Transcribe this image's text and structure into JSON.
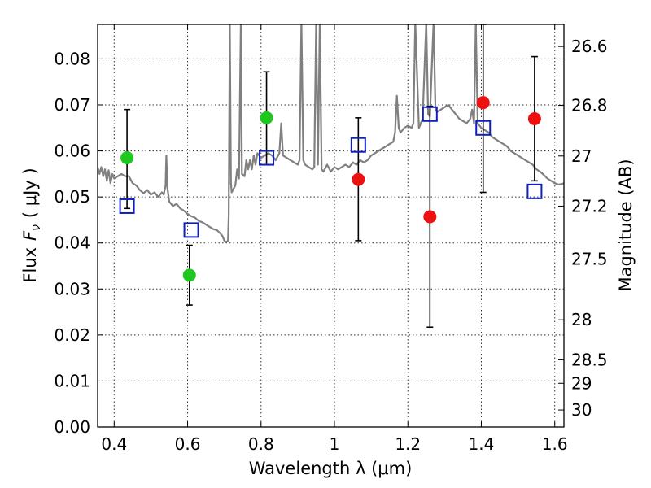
{
  "chart_data": {
    "type": "scatter",
    "xlabel": "Wavelength  λ (μm)",
    "ylabel": "Flux  F_ν ( μJy )",
    "ylabel_parts": {
      "prefix": "Flux",
      "var": "F",
      "sub": "ν",
      "unit": "( μJy )"
    },
    "y2label": "Magnitude (AB)",
    "xlim": [
      0.355,
      1.625
    ],
    "ylim": [
      0.0,
      0.0875
    ],
    "x_ticks": [
      0.4,
      0.6,
      0.8,
      1.0,
      1.2,
      1.4,
      1.6
    ],
    "x_tick_labels": [
      "0.4",
      "0.6",
      "0.8",
      "1",
      "1.2",
      "1.4",
      "1.6"
    ],
    "y_ticks": [
      0.0,
      0.01,
      0.02,
      0.03,
      0.04,
      0.05,
      0.06,
      0.07,
      0.08
    ],
    "y_tick_labels": [
      "0.00",
      "0.01",
      "0.02",
      "0.03",
      "0.04",
      "0.05",
      "0.06",
      "0.07",
      "0.08"
    ],
    "y2_ticks": [
      {
        "label": "26.6",
        "flux": 0.0827
      },
      {
        "label": "26.8",
        "flux": 0.0699
      },
      {
        "label": "27",
        "flux": 0.0589
      },
      {
        "label": "27.2",
        "flux": 0.048
      },
      {
        "label": "27.5",
        "flux": 0.0365
      },
      {
        "label": "28",
        "flux": 0.0233
      },
      {
        "label": "28.5",
        "flux": 0.0146
      },
      {
        "label": "29",
        "flux": 0.0095
      },
      {
        "label": "30",
        "flux": 0.0037
      }
    ],
    "grid": true,
    "colors": {
      "green": "#1ec81e",
      "red": "#ee1111",
      "blue": "#1020c0",
      "model": "#808080",
      "error": "#000000"
    },
    "series": [
      {
        "kind": "observed-green",
        "marker": "filled-circle",
        "points": [
          {
            "x": 0.435,
            "y": 0.0585,
            "ylo": 0.0475,
            "yhi": 0.069
          },
          {
            "x": 0.605,
            "y": 0.033,
            "ylo": 0.0265,
            "yhi": 0.0395
          },
          {
            "x": 0.815,
            "y": 0.0672,
            "ylo": 0.057,
            "yhi": 0.0772
          }
        ]
      },
      {
        "kind": "observed-red",
        "marker": "filled-circle",
        "points": [
          {
            "x": 1.065,
            "y": 0.0538,
            "ylo": 0.0405,
            "yhi": 0.0672
          },
          {
            "x": 1.26,
            "y": 0.0457,
            "ylo": 0.0217,
            "yhi": 0.0697
          },
          {
            "x": 1.405,
            "y": 0.0705,
            "ylo": 0.051,
            "yhi": 0.0875
          },
          {
            "x": 1.545,
            "y": 0.067,
            "ylo": 0.0535,
            "yhi": 0.0805
          }
        ]
      },
      {
        "kind": "model-photometry",
        "marker": "open-square",
        "points": [
          {
            "x": 0.435,
            "y": 0.048
          },
          {
            "x": 0.61,
            "y": 0.0428
          },
          {
            "x": 0.815,
            "y": 0.0585
          },
          {
            "x": 1.065,
            "y": 0.0613
          },
          {
            "x": 1.26,
            "y": 0.068
          },
          {
            "x": 1.405,
            "y": 0.065
          },
          {
            "x": 1.545,
            "y": 0.0512
          }
        ]
      }
    ],
    "model_spectrum": [
      [
        0.355,
        0.0565
      ],
      [
        0.36,
        0.055
      ],
      [
        0.365,
        0.0565
      ],
      [
        0.37,
        0.0545
      ],
      [
        0.375,
        0.056
      ],
      [
        0.38,
        0.0535
      ],
      [
        0.385,
        0.0558
      ],
      [
        0.39,
        0.053
      ],
      [
        0.395,
        0.055
      ],
      [
        0.4,
        0.054
      ],
      [
        0.41,
        0.0545
      ],
      [
        0.42,
        0.055
      ],
      [
        0.43,
        0.0545
      ],
      [
        0.44,
        0.0545
      ],
      [
        0.45,
        0.053
      ],
      [
        0.46,
        0.0525
      ],
      [
        0.47,
        0.0515
      ],
      [
        0.48,
        0.0508
      ],
      [
        0.49,
        0.0515
      ],
      [
        0.5,
        0.0505
      ],
      [
        0.51,
        0.051
      ],
      [
        0.52,
        0.05
      ],
      [
        0.53,
        0.051
      ],
      [
        0.535,
        0.0505
      ],
      [
        0.54,
        0.0525
      ],
      [
        0.542,
        0.059
      ],
      [
        0.545,
        0.052
      ],
      [
        0.55,
        0.049
      ],
      [
        0.56,
        0.048
      ],
      [
        0.57,
        0.0485
      ],
      [
        0.58,
        0.0475
      ],
      [
        0.59,
        0.047
      ],
      [
        0.6,
        0.0463
      ],
      [
        0.61,
        0.0458
      ],
      [
        0.62,
        0.0455
      ],
      [
        0.63,
        0.0448
      ],
      [
        0.64,
        0.0445
      ],
      [
        0.65,
        0.044
      ],
      [
        0.66,
        0.0435
      ],
      [
        0.67,
        0.043
      ],
      [
        0.68,
        0.0428
      ],
      [
        0.69,
        0.042
      ],
      [
        0.695,
        0.0415
      ],
      [
        0.7,
        0.0405
      ],
      [
        0.705,
        0.0402
      ],
      [
        0.71,
        0.0405
      ],
      [
        0.712,
        0.046
      ],
      [
        0.715,
        0.088
      ],
      [
        0.718,
        0.053
      ],
      [
        0.72,
        0.051
      ],
      [
        0.73,
        0.0525
      ],
      [
        0.735,
        0.056
      ],
      [
        0.74,
        0.054
      ],
      [
        0.745,
        0.088
      ],
      [
        0.748,
        0.055
      ],
      [
        0.755,
        0.0545
      ],
      [
        0.76,
        0.058
      ],
      [
        0.765,
        0.056
      ],
      [
        0.77,
        0.058
      ],
      [
        0.775,
        0.056
      ],
      [
        0.78,
        0.059
      ],
      [
        0.785,
        0.057
      ],
      [
        0.79,
        0.0595
      ],
      [
        0.8,
        0.0585
      ],
      [
        0.81,
        0.059
      ],
      [
        0.82,
        0.0595
      ],
      [
        0.83,
        0.059
      ],
      [
        0.84,
        0.058
      ],
      [
        0.85,
        0.0595
      ],
      [
        0.855,
        0.066
      ],
      [
        0.86,
        0.059
      ],
      [
        0.87,
        0.0585
      ],
      [
        0.88,
        0.058
      ],
      [
        0.89,
        0.0575
      ],
      [
        0.9,
        0.057
      ],
      [
        0.905,
        0.058
      ],
      [
        0.91,
        0.088
      ],
      [
        0.915,
        0.058
      ],
      [
        0.92,
        0.057
      ],
      [
        0.93,
        0.0565
      ],
      [
        0.94,
        0.056
      ],
      [
        0.945,
        0.0565
      ],
      [
        0.95,
        0.088
      ],
      [
        0.955,
        0.057
      ],
      [
        0.96,
        0.088
      ],
      [
        0.965,
        0.056
      ],
      [
        0.97,
        0.0555
      ],
      [
        0.98,
        0.057
      ],
      [
        0.99,
        0.0555
      ],
      [
        1.0,
        0.0565
      ],
      [
        1.01,
        0.056
      ],
      [
        1.02,
        0.0565
      ],
      [
        1.03,
        0.057
      ],
      [
        1.04,
        0.0565
      ],
      [
        1.05,
        0.0575
      ],
      [
        1.06,
        0.057
      ],
      [
        1.07,
        0.058
      ],
      [
        1.08,
        0.0575
      ],
      [
        1.09,
        0.058
      ],
      [
        1.1,
        0.059
      ],
      [
        1.11,
        0.0595
      ],
      [
        1.12,
        0.06
      ],
      [
        1.13,
        0.0605
      ],
      [
        1.14,
        0.061
      ],
      [
        1.15,
        0.0615
      ],
      [
        1.16,
        0.062
      ],
      [
        1.165,
        0.064
      ],
      [
        1.17,
        0.072
      ],
      [
        1.175,
        0.065
      ],
      [
        1.18,
        0.064
      ],
      [
        1.19,
        0.065
      ],
      [
        1.2,
        0.0655
      ],
      [
        1.21,
        0.065
      ],
      [
        1.215,
        0.066
      ],
      [
        1.22,
        0.088
      ],
      [
        1.23,
        0.065
      ],
      [
        1.24,
        0.067
      ],
      [
        1.25,
        0.088
      ],
      [
        1.255,
        0.068
      ],
      [
        1.26,
        0.0675
      ],
      [
        1.27,
        0.088
      ],
      [
        1.275,
        0.069
      ],
      [
        1.28,
        0.0685
      ],
      [
        1.29,
        0.069
      ],
      [
        1.3,
        0.0695
      ],
      [
        1.31,
        0.07
      ],
      [
        1.32,
        0.069
      ],
      [
        1.33,
        0.068
      ],
      [
        1.34,
        0.067
      ],
      [
        1.35,
        0.0665
      ],
      [
        1.36,
        0.066
      ],
      [
        1.37,
        0.067
      ],
      [
        1.375,
        0.069
      ],
      [
        1.38,
        0.066
      ],
      [
        1.385,
        0.088
      ],
      [
        1.39,
        0.066
      ],
      [
        1.4,
        0.065
      ],
      [
        1.41,
        0.0645
      ],
      [
        1.42,
        0.064
      ],
      [
        1.43,
        0.063
      ],
      [
        1.44,
        0.0625
      ],
      [
        1.45,
        0.062
      ],
      [
        1.46,
        0.0615
      ],
      [
        1.47,
        0.061
      ],
      [
        1.48,
        0.06
      ],
      [
        1.49,
        0.0595
      ],
      [
        1.5,
        0.059
      ],
      [
        1.51,
        0.0585
      ],
      [
        1.52,
        0.058
      ],
      [
        1.53,
        0.0575
      ],
      [
        1.54,
        0.057
      ],
      [
        1.55,
        0.056
      ],
      [
        1.56,
        0.0555
      ],
      [
        1.57,
        0.0548
      ],
      [
        1.58,
        0.054
      ],
      [
        1.59,
        0.0535
      ],
      [
        1.6,
        0.053
      ],
      [
        1.61,
        0.0527
      ],
      [
        1.62,
        0.0528
      ],
      [
        1.625,
        0.053
      ]
    ]
  }
}
